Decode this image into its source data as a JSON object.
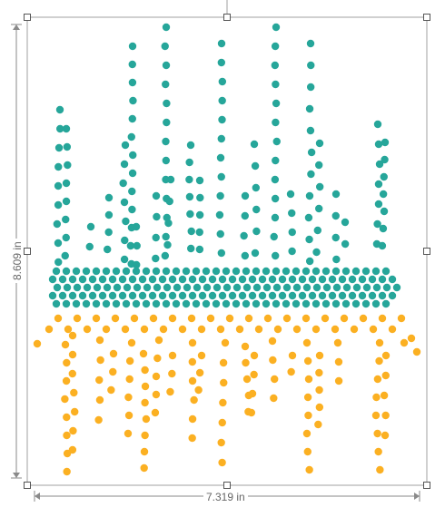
{
  "dimensions": {
    "width_label": "7.319 in",
    "height_label": "8.609 in"
  },
  "selection": {
    "frame_color": "#a0a0a0",
    "handle_color": "#ffffff",
    "handle_border": "#555555",
    "dim_line_color": "#8a8a8a"
  },
  "art": {
    "teal": "#26a69a",
    "orange": "#fbb022",
    "teal_rows": 3,
    "teal_cols": 35,
    "orange_scatter_rows": 9,
    "orange_scatter_cols": 20
  }
}
